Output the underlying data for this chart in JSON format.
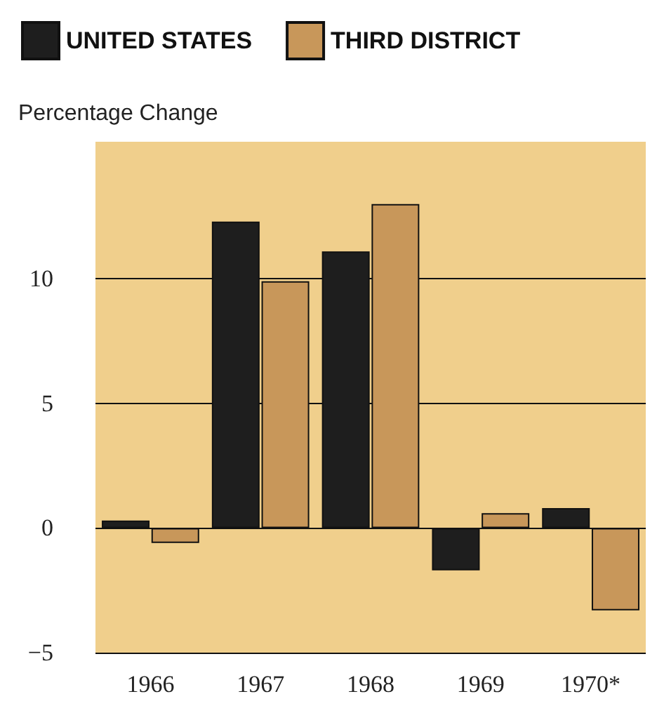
{
  "chart_data": {
    "type": "bar",
    "ylabel": "Percentage Change",
    "categories": [
      "1966",
      "1967",
      "1968",
      "1969",
      "1970*"
    ],
    "series": [
      {
        "name": "UNITED STATES",
        "color": "#1e1e1e",
        "values": [
          0.3,
          12.3,
          11.1,
          -1.7,
          0.8
        ]
      },
      {
        "name": "THIRD DISTRICT",
        "color": "#c8975a",
        "values": [
          -0.6,
          9.9,
          13.0,
          0.6,
          -3.3
        ]
      }
    ],
    "ylim": [
      -5,
      15.5
    ],
    "yticks": [
      -5,
      0,
      5,
      10
    ],
    "grid": "y",
    "legend": "top left"
  }
}
